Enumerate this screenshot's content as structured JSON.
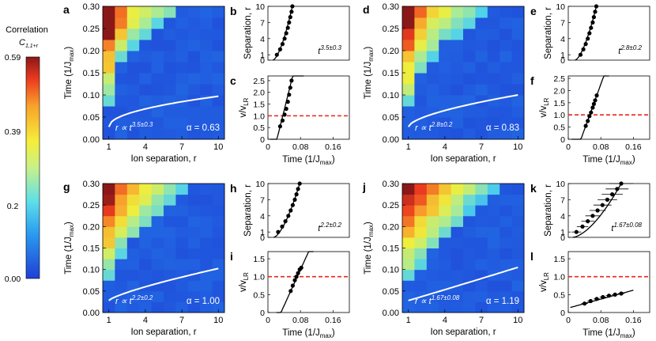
{
  "colorbar": {
    "title_line1": "Correlation",
    "title_line2": "C",
    "title_sub": "1,1+r",
    "ticks": [
      "0.59",
      "0.39",
      "0.2",
      "0.00"
    ],
    "tick_values": [
      0.59,
      0.39,
      0.2,
      0.0
    ],
    "min": 0.0,
    "max": 0.59
  },
  "heatmap_axes": {
    "xlabel": "Ion separation, r",
    "ylabel": "Time (1/J",
    "ylabel_sub": "max",
    "ylabel_end": ")",
    "xticks": [
      "1",
      "4",
      "7",
      "10"
    ],
    "xtick_values": [
      1,
      4,
      7,
      10
    ],
    "yticks": [
      "0.00",
      "0.05",
      "0.10",
      "0.15",
      "0.20",
      "0.25",
      "0.30"
    ],
    "ytick_values": [
      0.0,
      0.05,
      0.1,
      0.15,
      0.2,
      0.25,
      0.3
    ]
  },
  "separation_axes": {
    "ylabel": "Separation, r",
    "yticks": [
      "0",
      "1",
      "4",
      "7",
      "10"
    ],
    "ytick_values": [
      0,
      1,
      4,
      7,
      10
    ]
  },
  "velocity_axes": {
    "ylabel": "v/v",
    "ylabel_sub": "LR",
    "xlabel": "Time (1/J",
    "xlabel_sub": "max",
    "xlabel_end": ")",
    "xticks": [
      "0",
      "0.08",
      "0.16"
    ],
    "xtick_values": [
      0,
      0.08,
      0.16
    ],
    "lr_line_value": 1.0,
    "ticks_full": [
      "0",
      "0.5",
      "1.0",
      "1.5",
      "2.0",
      "2.5"
    ],
    "ticks_full_values": [
      0,
      0.5,
      1.0,
      1.5,
      2.0,
      2.5
    ],
    "ticks_small": [
      "0",
      "0.5",
      "1.0",
      "1.5"
    ],
    "ticks_small_values": [
      0,
      0.5,
      1.0,
      1.5
    ]
  },
  "chart_data": [
    {
      "panel": "a",
      "type": "heatmap",
      "fit_label": "r ∝ t",
      "fit_exponent": "3.5±0.3",
      "alpha_label": "α = 0.63",
      "alpha": 0.63,
      "exponent": 3.5,
      "ylim": [
        0,
        0.3
      ],
      "x": [
        1,
        2,
        3,
        4,
        5,
        6,
        7,
        8,
        9,
        10
      ]
    },
    {
      "panel": "b",
      "type": "scatter",
      "annotation": "t",
      "annotation_exp": "3.5±0.3",
      "ylim": [
        0,
        10
      ],
      "xlim": [
        0,
        0.2
      ],
      "x": [
        0.022,
        0.03,
        0.036,
        0.041,
        0.045,
        0.049,
        0.052,
        0.055,
        0.058,
        0.06
      ],
      "y": [
        1,
        2,
        3,
        4,
        5,
        6,
        7,
        8,
        9,
        10
      ]
    },
    {
      "panel": "c",
      "type": "scatter",
      "ylim": [
        0,
        2.7
      ],
      "xlim": [
        0,
        0.2
      ],
      "x": [
        0.03,
        0.036,
        0.041,
        0.045,
        0.049,
        0.052,
        0.055,
        0.058
      ],
      "y": [
        0.55,
        0.8,
        1.05,
        1.3,
        1.6,
        1.9,
        2.2,
        2.5
      ]
    },
    {
      "panel": "d",
      "type": "heatmap",
      "fit_label": "r ∝ t",
      "fit_exponent": "2.8±0.2",
      "alpha_label": "α = 0.83",
      "alpha": 0.83,
      "exponent": 2.8,
      "ylim": [
        0,
        0.3
      ],
      "x": [
        1,
        2,
        3,
        4,
        5,
        6,
        7,
        8,
        9,
        10
      ]
    },
    {
      "panel": "e",
      "type": "scatter",
      "annotation": "t",
      "annotation_exp": "2.8±0.2",
      "ylim": [
        0,
        10
      ],
      "xlim": [
        0,
        0.2
      ],
      "x": [
        0.03,
        0.037,
        0.043,
        0.048,
        0.052,
        0.056,
        0.06,
        0.063,
        0.066,
        0.069
      ],
      "y": [
        1,
        2,
        3,
        4,
        5,
        6,
        7,
        8,
        9,
        10
      ]
    },
    {
      "panel": "f",
      "type": "scatter",
      "ylim": [
        0,
        2.6
      ],
      "xlim": [
        0,
        0.2
      ],
      "x": [
        0.043,
        0.048,
        0.052,
        0.056,
        0.06,
        0.063,
        0.066,
        0.07
      ],
      "y": [
        0.55,
        0.75,
        0.95,
        1.1,
        1.3,
        1.45,
        1.6,
        1.8
      ]
    },
    {
      "panel": "g",
      "type": "heatmap",
      "fit_label": "r ∝ t",
      "fit_exponent": "2.2±0.2",
      "alpha_label": "α = 1.00",
      "alpha": 1.0,
      "exponent": 2.2,
      "ylim": [
        0,
        0.3
      ],
      "x": [
        1,
        2,
        3,
        4,
        5,
        6,
        7,
        8,
        9,
        10
      ]
    },
    {
      "panel": "h",
      "type": "scatter",
      "annotation": "t",
      "annotation_exp": "2.2±0.2",
      "ylim": [
        0,
        10
      ],
      "xlim": [
        0,
        0.2
      ],
      "x": [
        0.025,
        0.035,
        0.043,
        0.05,
        0.056,
        0.061,
        0.066,
        0.07,
        0.074,
        0.078
      ],
      "y": [
        1,
        2,
        3,
        4,
        5,
        6,
        7,
        8,
        9,
        10
      ]
    },
    {
      "panel": "i",
      "type": "scatter",
      "ylim": [
        0,
        1.7
      ],
      "xlim": [
        0,
        0.2
      ],
      "x": [
        0.056,
        0.061,
        0.066,
        0.07,
        0.074,
        0.078,
        0.082
      ],
      "y": [
        0.6,
        0.75,
        0.9,
        1.0,
        1.1,
        1.2,
        1.25
      ]
    },
    {
      "panel": "j",
      "type": "heatmap",
      "fit_label": "r ∝ t",
      "fit_exponent": "1.67±0.08",
      "alpha_label": "α = 1.19",
      "alpha": 1.19,
      "exponent": 1.67,
      "ylim": [
        0,
        0.3
      ],
      "x": [
        1,
        2,
        3,
        4,
        5,
        6,
        7,
        8,
        9,
        10
      ]
    },
    {
      "panel": "k",
      "type": "scatter",
      "annotation": "t",
      "annotation_exp": "1.67±0.08",
      "ylim": [
        0,
        10
      ],
      "xlim": [
        0,
        0.2
      ],
      "x": [
        0.02,
        0.035,
        0.048,
        0.06,
        0.072,
        0.084,
        0.096,
        0.108,
        0.12,
        0.13
      ],
      "y": [
        1,
        2,
        3,
        4,
        5,
        6,
        7,
        8,
        9,
        10
      ]
    },
    {
      "panel": "l",
      "type": "scatter",
      "ylim": [
        0,
        1.7
      ],
      "xlim": [
        0,
        0.2
      ],
      "x": [
        0.04,
        0.055,
        0.07,
        0.085,
        0.1,
        0.115,
        0.13
      ],
      "y": [
        0.25,
        0.32,
        0.38,
        0.43,
        0.47,
        0.5,
        0.53
      ]
    }
  ]
}
